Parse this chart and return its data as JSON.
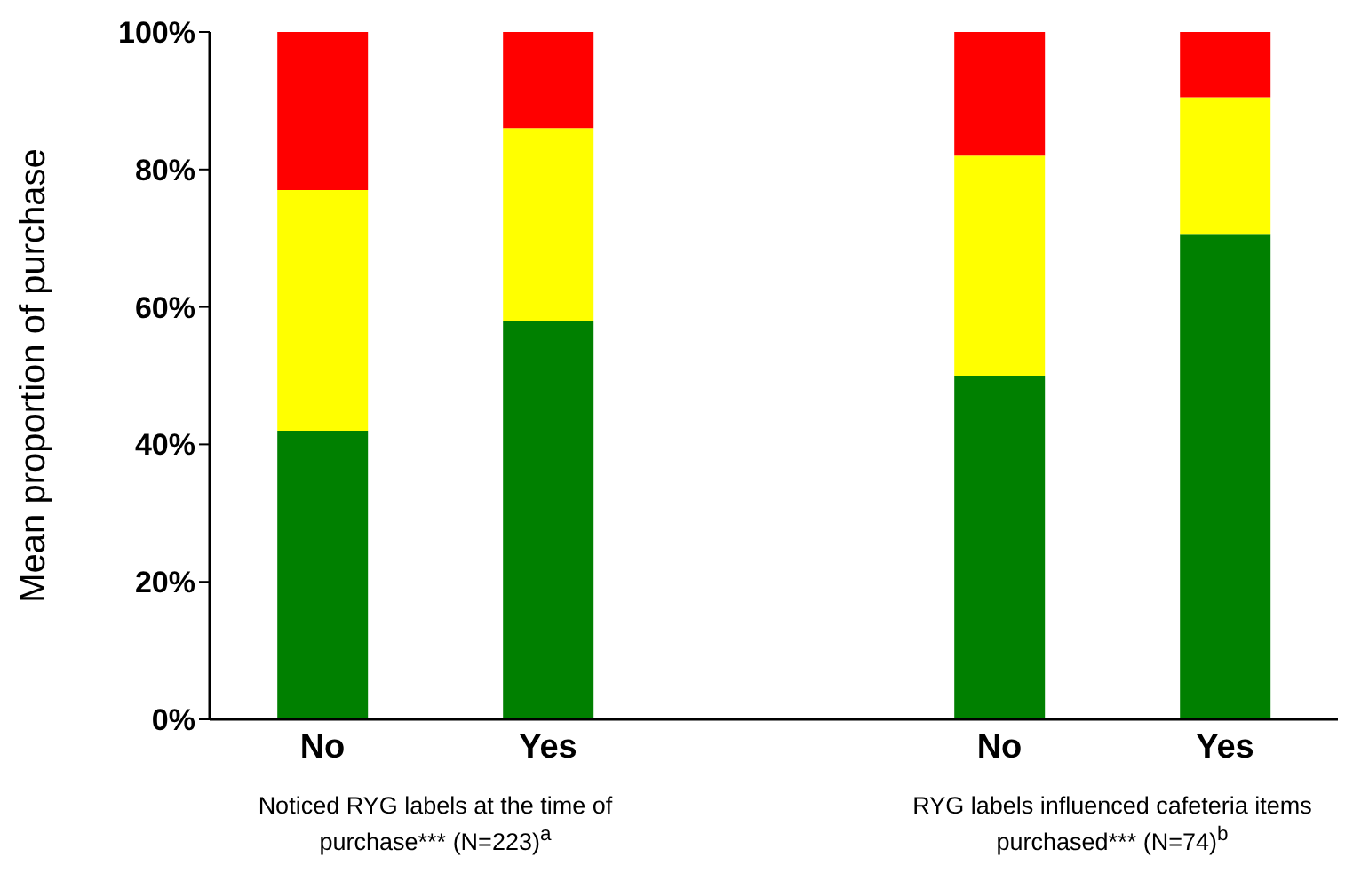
{
  "chart_data": {
    "type": "bar",
    "stacked": true,
    "ylabel": "Mean proportion of purchase",
    "categories": [
      "No",
      "Yes",
      null,
      "No",
      "Yes"
    ],
    "series": [
      {
        "color": "#008000",
        "values": [
          42,
          58,
          null,
          50,
          70.5
        ]
      },
      {
        "color": "#ffff00",
        "values": [
          35,
          28,
          null,
          32,
          20
        ]
      },
      {
        "color": "#ff0000",
        "values": [
          23,
          14,
          null,
          18,
          9.5
        ]
      }
    ],
    "ylim": [
      0,
      100
    ],
    "yticks": [
      {
        "value": 0,
        "label": "0%"
      },
      {
        "value": 20,
        "label": "20%"
      },
      {
        "value": 40,
        "label": "40%"
      },
      {
        "value": 60,
        "label": "60%"
      },
      {
        "value": 80,
        "label": "80%"
      },
      {
        "value": 100,
        "label": "100%"
      }
    ],
    "grid": false,
    "legend": false,
    "annotations": [
      "Noticed RYG labels at the time of purchase*** (N=223)$^{a}$",
      "RYG labels influenced cafeteria items purchased*** (N=74)$^{b}$"
    ]
  }
}
